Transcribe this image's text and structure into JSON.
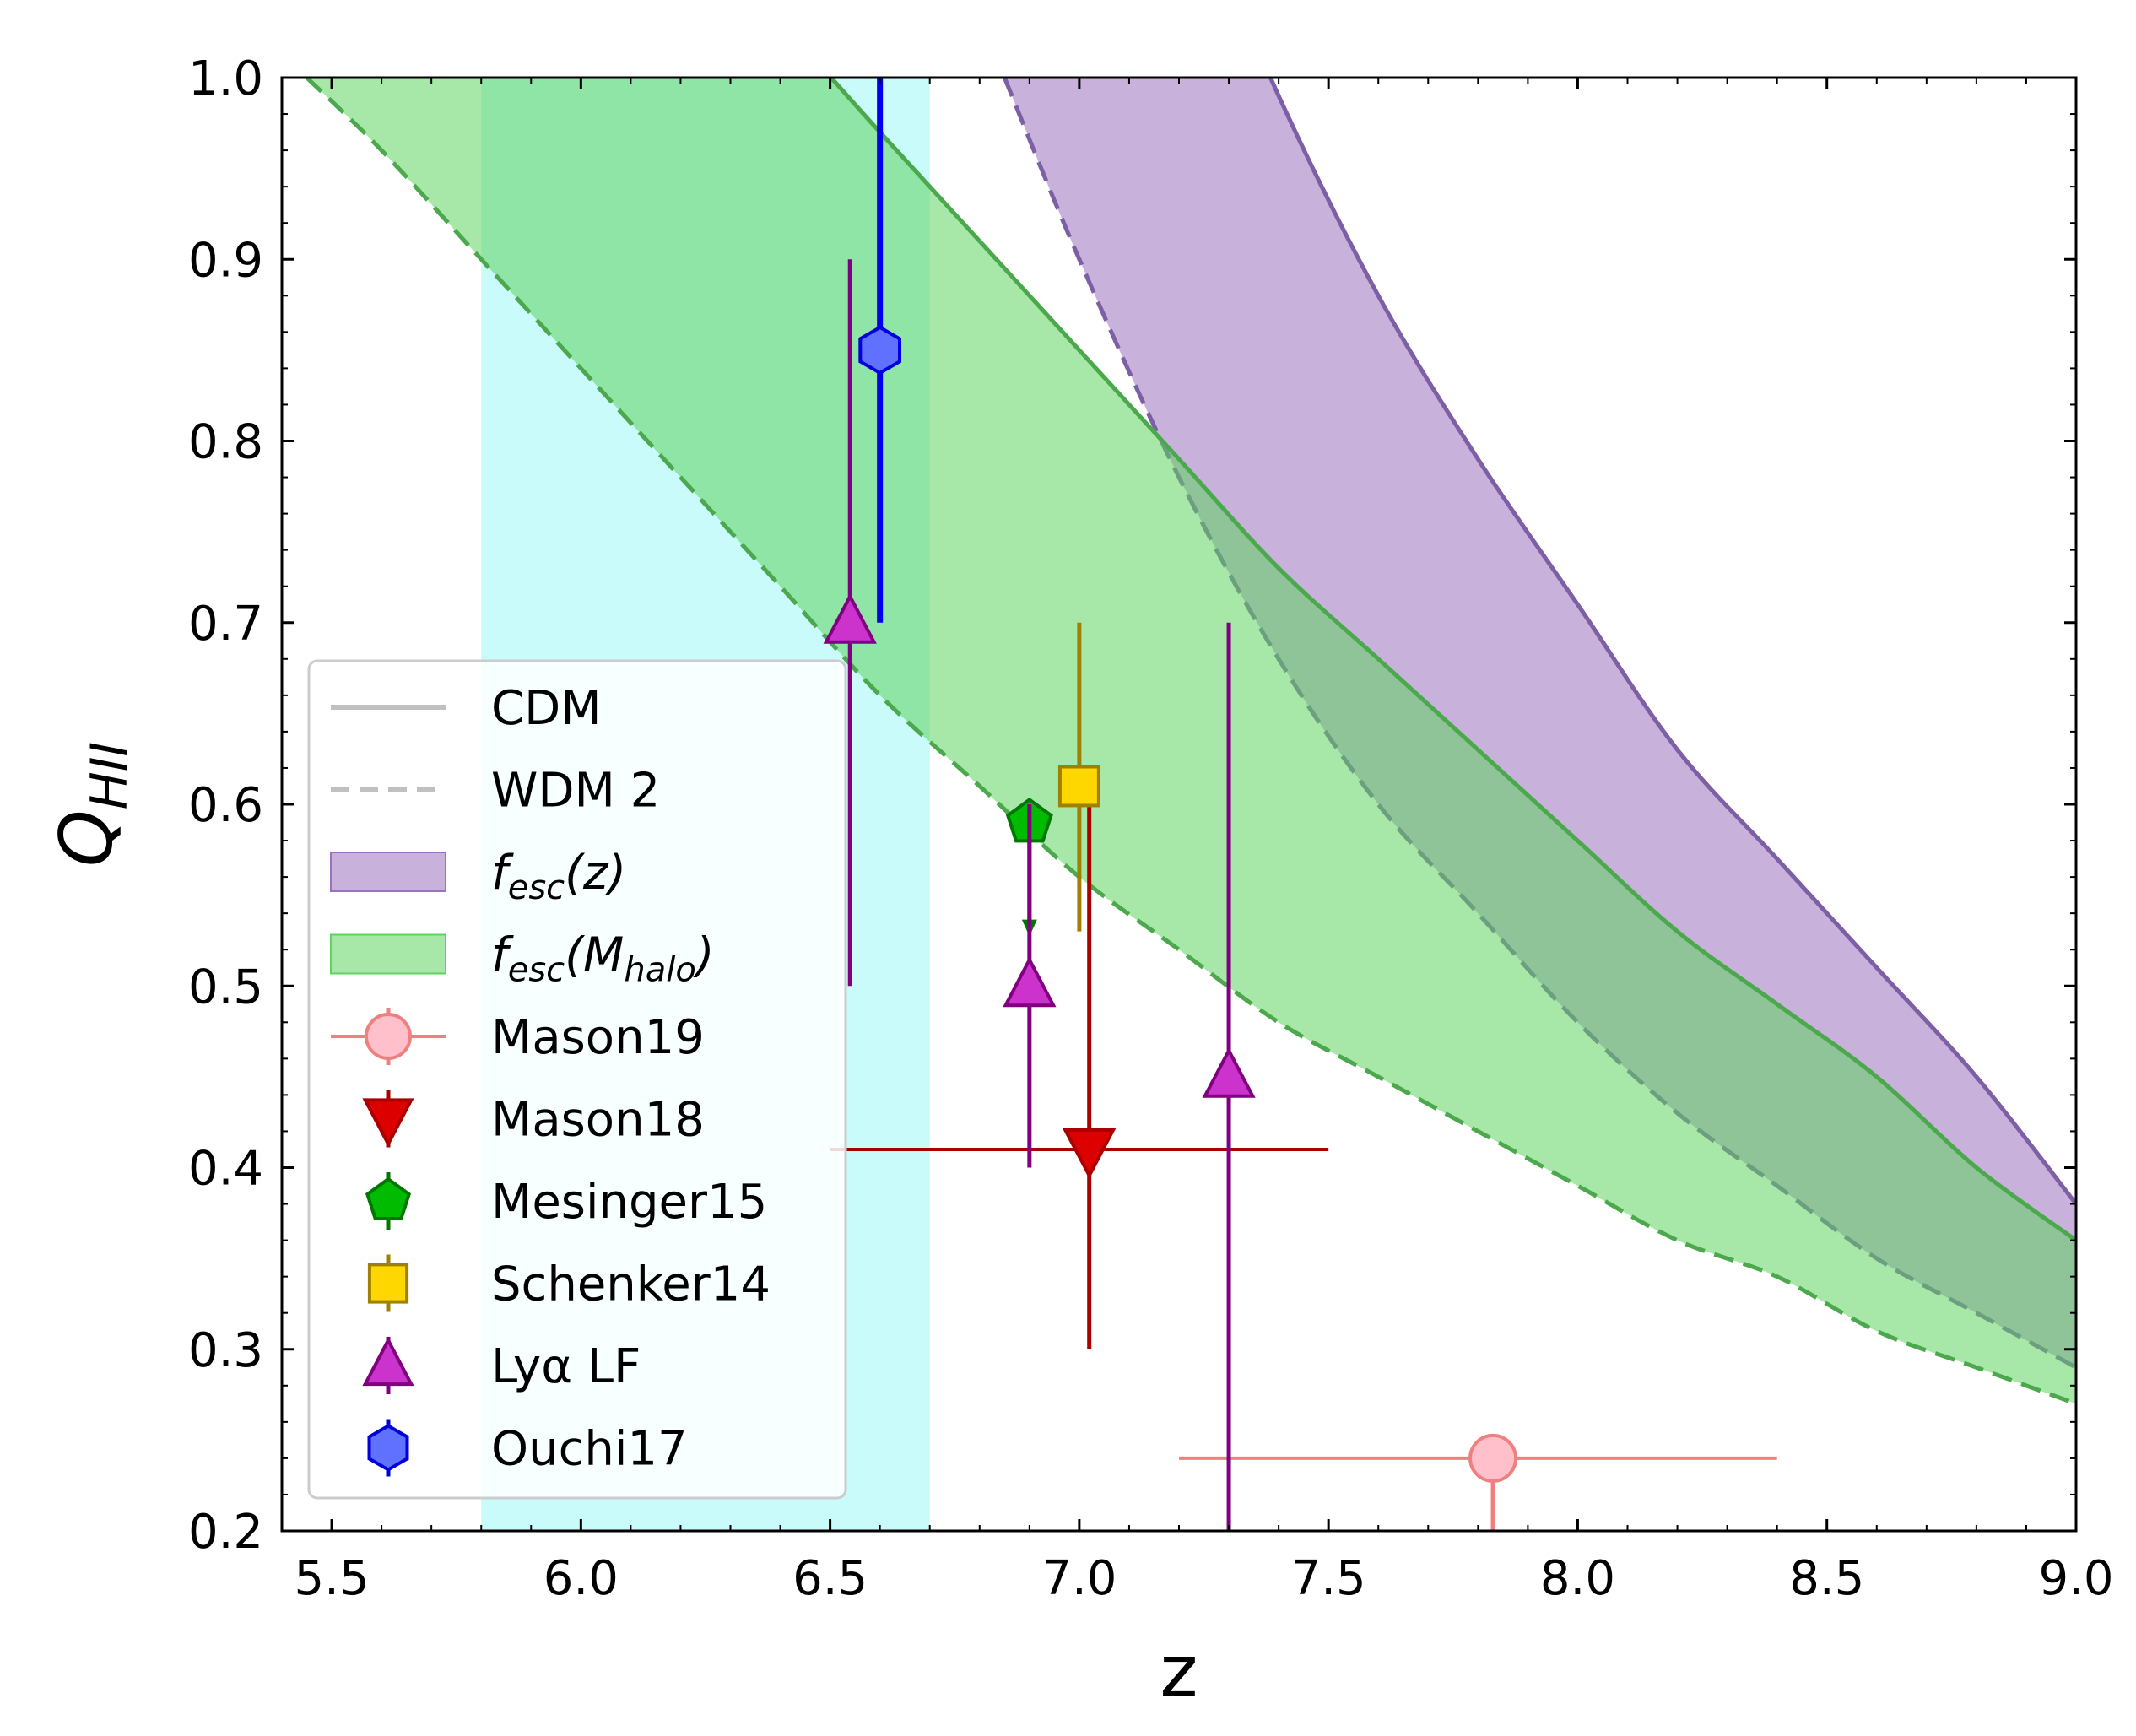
{
  "chart_data": {
    "type": "line",
    "xlabel": "z",
    "ylabel": "Q",
    "ylabel_sub": "HII",
    "xlim": [
      5.4,
      9.0
    ],
    "ylim": [
      0.2,
      1.0
    ],
    "xticks": [
      "5.5",
      "6.0",
      "6.5",
      "7.0",
      "7.5",
      "8.0",
      "8.5",
      "9.0"
    ],
    "xtick_values": [
      5.5,
      6.0,
      6.5,
      7.0,
      7.5,
      8.0,
      8.5,
      9.0
    ],
    "yticks": [
      "0.2",
      "0.3",
      "0.4",
      "0.5",
      "0.6",
      "0.7",
      "0.8",
      "0.9",
      "1.0"
    ],
    "ytick_values": [
      0.2,
      0.3,
      0.4,
      0.5,
      0.6,
      0.7,
      0.8,
      0.9,
      1.0
    ],
    "vertical_band": {
      "x": [
        5.8,
        6.7
      ],
      "color": "#7ff5f5"
    },
    "bands": [
      {
        "legend": "f_esc(z)",
        "color": "#9b72c0",
        "line_color": "#7d5fa6",
        "upper_cdm": {
          "x": [
            7.2,
            7.4,
            7.6,
            7.8,
            8.0,
            8.2,
            8.4,
            8.6,
            8.8,
            9.0
          ],
          "y": [
            1.12,
            0.99,
            0.88,
            0.79,
            0.71,
            0.63,
            0.57,
            0.51,
            0.45,
            0.38
          ]
        },
        "lower_wdm": {
          "x": [
            6.85,
            7.0,
            7.2,
            7.4,
            7.6,
            7.8,
            8.0,
            8.2,
            8.4,
            8.6,
            8.8,
            9.0
          ],
          "y": [
            1.0,
            0.9,
            0.78,
            0.68,
            0.6,
            0.54,
            0.48,
            0.43,
            0.39,
            0.35,
            0.32,
            0.29
          ]
        }
      },
      {
        "legend": "f_esc(M_halo)",
        "color": "#5fd35f",
        "line_color": "#4ca84c",
        "upper_cdm": {
          "x": [
            5.6,
            5.8,
            6.0,
            6.2,
            6.4,
            6.6,
            6.8,
            7.0,
            7.2,
            7.4,
            7.6,
            7.8,
            8.0,
            8.2,
            8.4,
            8.6,
            8.8,
            9.0
          ],
          "y": [
            1.24,
            1.19,
            1.13,
            1.08,
            1.03,
            0.97,
            0.91,
            0.85,
            0.79,
            0.73,
            0.68,
            0.63,
            0.58,
            0.53,
            0.49,
            0.45,
            0.4,
            0.36
          ]
        },
        "lower_wdm": {
          "x": [
            5.45,
            5.6,
            5.8,
            6.0,
            6.2,
            6.4,
            6.6,
            6.8,
            7.0,
            7.2,
            7.4,
            7.6,
            7.8,
            8.0,
            8.2,
            8.4,
            8.6,
            8.8,
            9.0
          ],
          "y": [
            1.0,
            0.96,
            0.9,
            0.84,
            0.78,
            0.72,
            0.66,
            0.61,
            0.56,
            0.52,
            0.48,
            0.45,
            0.42,
            0.39,
            0.36,
            0.34,
            0.31,
            0.29,
            0.27
          ]
        }
      }
    ],
    "points": [
      {
        "name": "Mason19",
        "x": 7.83,
        "y": 0.24,
        "xerr": [
          0.63,
          0.57
        ],
        "yerr": [
          0.05,
          0.0
        ],
        "marker": "circle",
        "face": "#ffc0cb",
        "edge": "#f08080",
        "err": "#f08080"
      },
      {
        "name": "Mason18",
        "x": 7.02,
        "y": 0.41,
        "xerr": [
          0.52,
          0.48
        ],
        "yerr": [
          0.11,
          0.19
        ],
        "marker": "triangle-down",
        "face": "#dd0000",
        "edge": "#aa0000",
        "err": "#aa0000"
      },
      {
        "name": "Mesinger15",
        "x": 6.9,
        "y": 0.59,
        "xerr": [
          0.0,
          0.0
        ],
        "yerr": [
          0.06,
          0.0
        ],
        "marker": "pentagon",
        "face": "#00bb00",
        "edge": "#007700",
        "err": "#007700"
      },
      {
        "name": "Schenker14",
        "x": 7.0,
        "y": 0.61,
        "xerr": [
          0.0,
          0.0
        ],
        "yerr": [
          0.08,
          0.09
        ],
        "marker": "square",
        "face": "#ffd700",
        "edge": "#a08000",
        "err": "#a08000"
      },
      {
        "name": "Lyα LF",
        "x": 6.54,
        "y": 0.7,
        "xerr": [
          0.0,
          0.0
        ],
        "yerr": [
          0.2,
          0.2
        ],
        "marker": "triangle-up",
        "face": "#cc33cc",
        "edge": "#800080",
        "err": "#800080"
      },
      {
        "name": "Lyα LF",
        "x": 6.9,
        "y": 0.5,
        "xerr": [
          0.0,
          0.0
        ],
        "yerr": [
          0.1,
          0.1
        ],
        "marker": "triangle-up",
        "face": "#cc33cc",
        "edge": "#800080",
        "err": "#800080"
      },
      {
        "name": "Lyα LF",
        "x": 7.3,
        "y": 0.45,
        "xerr": [
          0.0,
          0.0
        ],
        "yerr": [
          0.25,
          0.25
        ],
        "marker": "triangle-up",
        "face": "#cc33cc",
        "edge": "#800080",
        "err": "#800080"
      },
      {
        "name": "Ouchi17",
        "x": 6.6,
        "y": 0.85,
        "xerr": [
          0.0,
          0.0
        ],
        "yerr": [
          0.15,
          0.15
        ],
        "marker": "hexagon",
        "face": "#6070ff",
        "edge": "#0000dd",
        "err": "#0000ee"
      }
    ],
    "legend": {
      "position": "lower-left",
      "entries": [
        {
          "type": "line-solid",
          "label": "CDM",
          "color": "#c0c0c0"
        },
        {
          "type": "line-dashed",
          "label": "WDM 2",
          "color": "#c0c0c0"
        },
        {
          "type": "patch",
          "label_main": "f",
          "label_sub": "esc",
          "label_tail": "(z)",
          "color": "#9b72c0"
        },
        {
          "type": "patch",
          "label_main": "f",
          "label_sub": "esc",
          "label_tail_pre": "(M",
          "label_tail_sub": "halo",
          "label_tail_post": ")",
          "color": "#5fd35f"
        },
        {
          "type": "marker",
          "label": "Mason19",
          "marker": "circle",
          "face": "#ffc0cb",
          "edge": "#f08080"
        },
        {
          "type": "marker",
          "label": "Mason18",
          "marker": "triangle-down",
          "face": "#dd0000",
          "edge": "#aa0000"
        },
        {
          "type": "marker",
          "label": "Mesinger15",
          "marker": "pentagon",
          "face": "#00bb00",
          "edge": "#007700"
        },
        {
          "type": "marker",
          "label": "Schenker14",
          "marker": "square",
          "face": "#ffd700",
          "edge": "#a08000"
        },
        {
          "type": "marker",
          "label": "Lyα LF",
          "marker": "triangle-up",
          "face": "#cc33cc",
          "edge": "#800080"
        },
        {
          "type": "marker",
          "label": "Ouchi17",
          "marker": "hexagon",
          "face": "#6070ff",
          "edge": "#0000dd"
        }
      ]
    }
  }
}
